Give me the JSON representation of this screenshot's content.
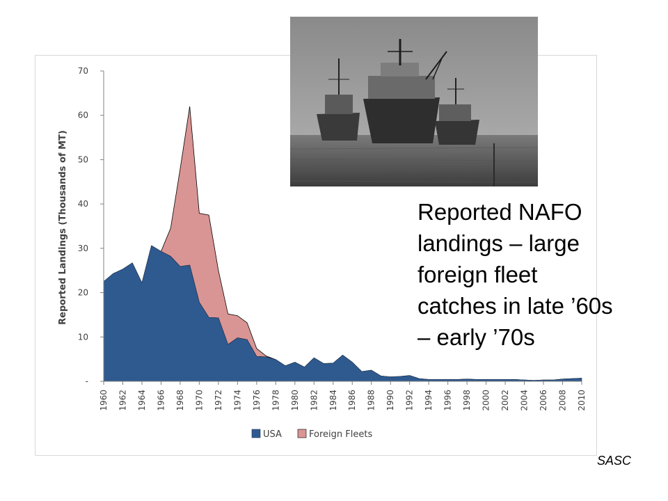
{
  "chart_data": {
    "type": "area",
    "stacked": true,
    "ylabel": "Reported Landings (Thousands of MT)",
    "ylim": [
      0,
      70
    ],
    "yticks": [
      0,
      10,
      20,
      30,
      40,
      50,
      60,
      70
    ],
    "ytick_labels": [
      "-",
      "10",
      "20",
      "30",
      "40",
      "50",
      "60",
      "70"
    ],
    "xlim": [
      1960,
      2010
    ],
    "xticks": [
      1960,
      1962,
      1964,
      1966,
      1968,
      1970,
      1972,
      1974,
      1976,
      1978,
      1980,
      1982,
      1984,
      1986,
      1988,
      1990,
      1992,
      1994,
      1996,
      1998,
      2000,
      2002,
      2004,
      2006,
      2008,
      2010
    ],
    "grid": false,
    "legend_position": "bottom",
    "x": [
      1960,
      1961,
      1962,
      1963,
      1964,
      1965,
      1966,
      1967,
      1968,
      1969,
      1970,
      1971,
      1972,
      1973,
      1974,
      1975,
      1976,
      1977,
      1978,
      1979,
      1980,
      1981,
      1982,
      1983,
      1984,
      1985,
      1986,
      1987,
      1988,
      1989,
      1990,
      1991,
      1992,
      1993,
      1994,
      1995,
      1996,
      1997,
      1998,
      1999,
      2000,
      2001,
      2002,
      2003,
      2004,
      2005,
      2006,
      2007,
      2008,
      2009,
      2010
    ],
    "series": [
      {
        "name": "USA",
        "color": "#2f5a8f",
        "values": [
          22.5,
          24.3,
          25.3,
          26.7,
          22.2,
          30.6,
          29.3,
          28.2,
          25.9,
          26.2,
          17.8,
          14.4,
          14.3,
          8.3,
          9.8,
          9.4,
          5.6,
          5.5,
          4.9,
          3.5,
          4.3,
          3.2,
          5.3,
          4.0,
          4.1,
          5.9,
          4.3,
          2.2,
          2.5,
          1.2,
          1.0,
          1.1,
          1.3,
          0.6,
          0.4,
          0.4,
          0.4,
          0.4,
          0.5,
          0.4,
          0.4,
          0.4,
          0.4,
          0.4,
          0.3,
          0.2,
          0.3,
          0.3,
          0.5,
          0.6,
          0.7
        ]
      },
      {
        "name": "Foreign Fleets",
        "color": "#d99594",
        "values": [
          0,
          0,
          0,
          0,
          0,
          0,
          0,
          6.3,
          22.0,
          35.8,
          20.1,
          23.1,
          10.7,
          6.9,
          5.0,
          3.8,
          1.8,
          0.2,
          0,
          0,
          0,
          0,
          0,
          0,
          0,
          0,
          0,
          0,
          0,
          0,
          0,
          0,
          0,
          0,
          0,
          0,
          0,
          0,
          0,
          0,
          0,
          0,
          0,
          0,
          0,
          0,
          0,
          0,
          0,
          0,
          0
        ]
      }
    ]
  },
  "caption": {
    "lines": [
      "Reported NAFO",
      "landings – large",
      "foreign fleet",
      "catches in late ’60s",
      "– early ’70s"
    ]
  },
  "credit": "SASC",
  "photo": {
    "subject": "fishing-vessels-photo",
    "colors": {
      "sky": "#6b6b6b",
      "sea": "#4a4a4a",
      "hull": "#2e2e2e"
    }
  }
}
